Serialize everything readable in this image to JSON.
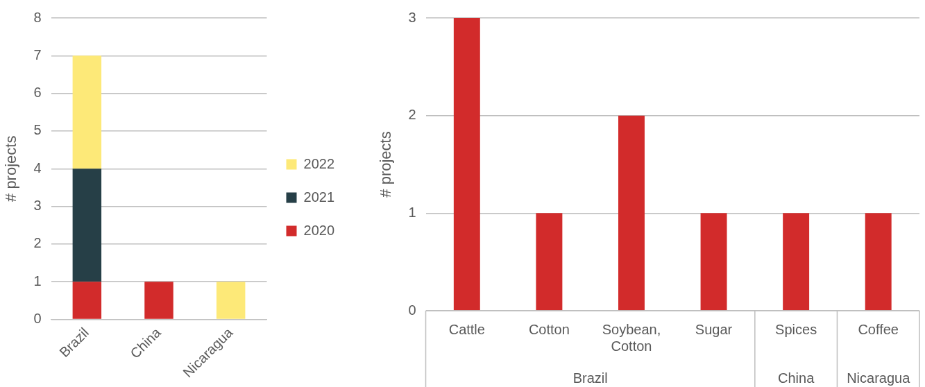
{
  "chart_data": [
    {
      "type": "bar",
      "stacked": true,
      "categories": [
        "Brazil",
        "China",
        "Nicaragua"
      ],
      "ylabel": "# projects",
      "ylim": [
        0,
        8
      ],
      "yticks": [
        0,
        1,
        2,
        3,
        4,
        5,
        6,
        7,
        8
      ],
      "grid": "y",
      "legend": "right",
      "series": [
        {
          "name": "2020",
          "color": "#d22b2b",
          "values": [
            1,
            1,
            0
          ]
        },
        {
          "name": "2021",
          "color": "#263f47",
          "values": [
            3,
            0,
            0
          ]
        },
        {
          "name": "2022",
          "color": "#fde978",
          "values": [
            3,
            0,
            1
          ]
        }
      ]
    },
    {
      "type": "bar",
      "categories": [
        "Cattle",
        "Cotton",
        "Soybean, Cotton",
        "Sugar",
        "Spices",
        "Coffee"
      ],
      "values": [
        3,
        1,
        2,
        1,
        1,
        1
      ],
      "color": "#d22b2b",
      "ylabel": "# projects",
      "ylim": [
        0,
        3
      ],
      "yticks": [
        0,
        1,
        2,
        3
      ],
      "grid": "y",
      "annotations": [
        "Brazil",
        "China",
        "Nicaragua"
      ]
    }
  ]
}
